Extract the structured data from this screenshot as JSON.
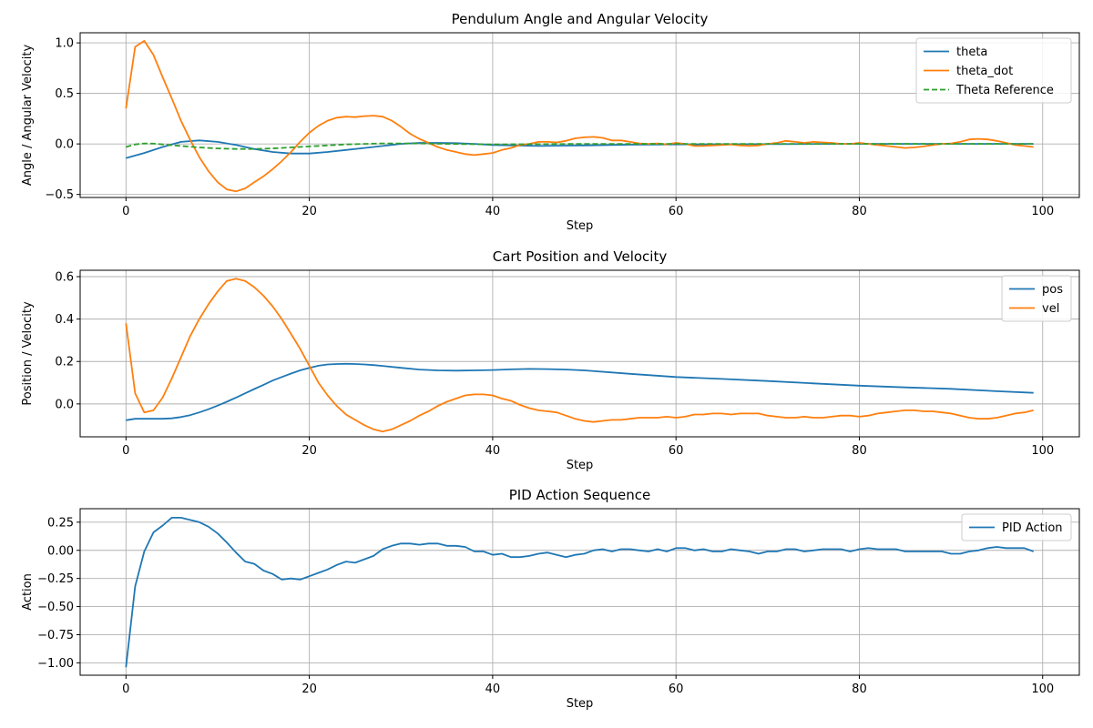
{
  "chart_data": [
    {
      "type": "line",
      "title": "Pendulum Angle and Angular Velocity",
      "xlabel": "Step",
      "ylabel": "Angle / Angular Velocity",
      "xlim": [
        -5,
        104
      ],
      "ylim": [
        -0.53,
        1.1
      ],
      "xticks": [
        0,
        20,
        40,
        60,
        80,
        100
      ],
      "yticks": [
        -0.5,
        0.0,
        0.5,
        1.0
      ],
      "yticklabels": [
        "−0.5",
        "0.0",
        "0.5",
        "1.0"
      ],
      "grid": true,
      "legend_position": "top-right",
      "series": [
        {
          "name": "theta",
          "color": "#1f77b4",
          "dash": "solid",
          "x": [
            0,
            2,
            4,
            6,
            8,
            10,
            12,
            14,
            16,
            18,
            20,
            22,
            24,
            26,
            28,
            30,
            32,
            34,
            36,
            38,
            40,
            45,
            50,
            55,
            60,
            65,
            70,
            80,
            90,
            99
          ],
          "y": [
            -0.14,
            -0.09,
            -0.03,
            0.02,
            0.035,
            0.02,
            -0.01,
            -0.05,
            -0.08,
            -0.095,
            -0.095,
            -0.08,
            -0.06,
            -0.04,
            -0.02,
            0.0,
            0.01,
            0.01,
            0.008,
            0.0,
            -0.01,
            -0.02,
            -0.015,
            -0.008,
            -0.005,
            -0.003,
            -0.002,
            0.0,
            0.0,
            0.0
          ]
        },
        {
          "name": "theta_dot",
          "color": "#ff7f0e",
          "dash": "solid",
          "x": [
            0,
            1,
            2,
            3,
            4,
            5,
            6,
            7,
            8,
            9,
            10,
            11,
            12,
            13,
            14,
            15,
            16,
            17,
            18,
            19,
            20,
            21,
            22,
            23,
            24,
            25,
            26,
            27,
            28,
            29,
            30,
            31,
            32,
            33,
            34,
            35,
            36,
            37,
            38,
            39,
            40,
            41,
            42,
            43,
            44,
            45,
            46,
            47,
            48,
            49,
            50,
            51,
            52,
            53,
            54,
            55,
            56,
            57,
            58,
            59,
            60,
            61,
            62,
            63,
            64,
            65,
            66,
            67,
            68,
            69,
            70,
            71,
            72,
            73,
            74,
            75,
            76,
            77,
            78,
            79,
            80,
            81,
            82,
            83,
            84,
            85,
            86,
            87,
            88,
            89,
            90,
            91,
            92,
            93,
            94,
            95,
            96,
            97,
            98,
            99
          ],
          "y": [
            0.35,
            0.96,
            1.02,
            0.88,
            0.66,
            0.45,
            0.23,
            0.04,
            -0.13,
            -0.27,
            -0.38,
            -0.45,
            -0.47,
            -0.44,
            -0.38,
            -0.32,
            -0.25,
            -0.17,
            -0.08,
            0.02,
            0.11,
            0.18,
            0.23,
            0.26,
            0.27,
            0.265,
            0.275,
            0.28,
            0.27,
            0.23,
            0.17,
            0.1,
            0.05,
            0.01,
            -0.03,
            -0.06,
            -0.08,
            -0.1,
            -0.11,
            -0.1,
            -0.09,
            -0.06,
            -0.04,
            -0.01,
            0.0,
            0.02,
            0.02,
            0.015,
            0.03,
            0.055,
            0.065,
            0.07,
            0.06,
            0.035,
            0.035,
            0.02,
            0.005,
            0.0,
            0.005,
            -0.005,
            0.01,
            0.0,
            -0.02,
            -0.02,
            -0.015,
            -0.01,
            -0.005,
            -0.015,
            -0.02,
            -0.015,
            0.0,
            0.01,
            0.03,
            0.02,
            0.01,
            0.02,
            0.015,
            0.01,
            0.0,
            0.0,
            0.01,
            0.0,
            -0.01,
            -0.02,
            -0.03,
            -0.04,
            -0.035,
            -0.025,
            -0.01,
            0.0,
            0.005,
            0.02,
            0.045,
            0.05,
            0.045,
            0.03,
            0.01,
            -0.01,
            -0.02,
            -0.03
          ]
        },
        {
          "name": "Theta Reference",
          "color": "#2ca02c",
          "dash": "dashed",
          "x": [
            0,
            1,
            2,
            3,
            4,
            6,
            8,
            10,
            12,
            14,
            16,
            18,
            20,
            22,
            24,
            26,
            28,
            30,
            32,
            35,
            40,
            50,
            60,
            70,
            80,
            90,
            99
          ],
          "y": [
            -0.03,
            -0.005,
            0.005,
            0.003,
            -0.005,
            -0.02,
            -0.035,
            -0.045,
            -0.05,
            -0.05,
            -0.045,
            -0.035,
            -0.025,
            -0.015,
            -0.005,
            0.0,
            0.005,
            0.005,
            0.005,
            0.0,
            -0.005,
            0.0,
            0.0,
            0.0,
            0.0,
            0.0,
            0.0
          ]
        }
      ]
    },
    {
      "type": "line",
      "title": "Cart Position and Velocity",
      "xlabel": "Step",
      "ylabel": "Position / Velocity",
      "xlim": [
        -5,
        104
      ],
      "ylim": [
        -0.155,
        0.63
      ],
      "xticks": [
        0,
        20,
        40,
        60,
        80,
        100
      ],
      "yticks": [
        0.0,
        0.2,
        0.4,
        0.6
      ],
      "yticklabels": [
        "0.0",
        "0.2",
        "0.4",
        "0.6"
      ],
      "grid": true,
      "legend_position": "top-right",
      "series": [
        {
          "name": "pos",
          "color": "#1f77b4",
          "dash": "solid",
          "x": [
            0,
            1,
            2,
            3,
            4,
            5,
            6,
            7,
            8,
            9,
            10,
            11,
            12,
            13,
            14,
            15,
            16,
            17,
            18,
            19,
            20,
            21,
            22,
            23,
            24,
            25,
            26,
            27,
            28,
            30,
            32,
            34,
            36,
            38,
            40,
            42,
            44,
            46,
            48,
            50,
            55,
            60,
            65,
            70,
            75,
            80,
            85,
            90,
            95,
            99
          ],
          "y": [
            -0.077,
            -0.07,
            -0.07,
            -0.07,
            -0.07,
            -0.068,
            -0.062,
            -0.053,
            -0.04,
            -0.025,
            -0.008,
            0.01,
            0.03,
            0.05,
            0.07,
            0.09,
            0.11,
            0.127,
            0.143,
            0.158,
            0.17,
            0.18,
            0.186,
            0.188,
            0.189,
            0.188,
            0.186,
            0.183,
            0.179,
            0.17,
            0.162,
            0.158,
            0.157,
            0.158,
            0.16,
            0.163,
            0.165,
            0.164,
            0.162,
            0.158,
            0.142,
            0.127,
            0.118,
            0.108,
            0.097,
            0.086,
            0.078,
            0.071,
            0.06,
            0.052
          ]
        },
        {
          "name": "vel",
          "color": "#ff7f0e",
          "dash": "solid",
          "x": [
            0,
            1,
            2,
            3,
            4,
            5,
            6,
            7,
            8,
            9,
            10,
            11,
            12,
            13,
            14,
            15,
            16,
            17,
            18,
            19,
            20,
            21,
            22,
            23,
            24,
            25,
            26,
            27,
            28,
            29,
            30,
            31,
            32,
            33,
            34,
            35,
            36,
            37,
            38,
            39,
            40,
            41,
            42,
            43,
            44,
            45,
            46,
            47,
            48,
            49,
            50,
            51,
            52,
            53,
            54,
            55,
            56,
            57,
            58,
            59,
            60,
            61,
            62,
            63,
            64,
            65,
            66,
            67,
            68,
            69,
            70,
            71,
            72,
            73,
            74,
            75,
            76,
            77,
            78,
            79,
            80,
            81,
            82,
            83,
            84,
            85,
            86,
            87,
            88,
            89,
            90,
            91,
            92,
            93,
            94,
            95,
            96,
            97,
            98,
            99
          ],
          "y": [
            0.38,
            0.05,
            -0.04,
            -0.03,
            0.03,
            0.12,
            0.22,
            0.32,
            0.4,
            0.47,
            0.53,
            0.58,
            0.59,
            0.58,
            0.55,
            0.51,
            0.46,
            0.4,
            0.33,
            0.26,
            0.18,
            0.1,
            0.04,
            -0.01,
            -0.05,
            -0.075,
            -0.1,
            -0.12,
            -0.13,
            -0.12,
            -0.1,
            -0.08,
            -0.055,
            -0.035,
            -0.01,
            0.01,
            0.025,
            0.04,
            0.045,
            0.045,
            0.04,
            0.025,
            0.015,
            -0.005,
            -0.02,
            -0.03,
            -0.035,
            -0.04,
            -0.055,
            -0.07,
            -0.08,
            -0.085,
            -0.08,
            -0.075,
            -0.075,
            -0.07,
            -0.065,
            -0.065,
            -0.065,
            -0.06,
            -0.065,
            -0.06,
            -0.05,
            -0.05,
            -0.045,
            -0.045,
            -0.05,
            -0.045,
            -0.045,
            -0.045,
            -0.055,
            -0.06,
            -0.065,
            -0.065,
            -0.06,
            -0.065,
            -0.065,
            -0.06,
            -0.055,
            -0.055,
            -0.06,
            -0.055,
            -0.045,
            -0.04,
            -0.035,
            -0.03,
            -0.03,
            -0.035,
            -0.035,
            -0.04,
            -0.045,
            -0.055,
            -0.065,
            -0.07,
            -0.07,
            -0.065,
            -0.055,
            -0.045,
            -0.04,
            -0.03
          ]
        }
      ]
    },
    {
      "type": "line",
      "title": "PID Action Sequence",
      "xlabel": "Step",
      "ylabel": "Action",
      "xlim": [
        -5,
        104
      ],
      "ylim": [
        -1.11,
        0.37
      ],
      "xticks": [
        0,
        20,
        40,
        60,
        80,
        100
      ],
      "yticks": [
        -1.0,
        -0.75,
        -0.5,
        -0.25,
        0.0,
        0.25
      ],
      "yticklabels": [
        "−1.00",
        "−0.75",
        "−0.50",
        "−0.25",
        "0.00",
        "0.25"
      ],
      "grid": true,
      "legend_position": "top-right",
      "series": [
        {
          "name": "PID Action",
          "color": "#1f77b4",
          "dash": "solid",
          "x": [
            0,
            1,
            2,
            3,
            4,
            5,
            6,
            7,
            8,
            9,
            10,
            11,
            12,
            13,
            14,
            15,
            16,
            17,
            18,
            19,
            20,
            21,
            22,
            23,
            24,
            25,
            26,
            27,
            28,
            29,
            30,
            31,
            32,
            33,
            34,
            35,
            36,
            37,
            38,
            39,
            40,
            41,
            42,
            43,
            44,
            45,
            46,
            47,
            48,
            49,
            50,
            51,
            52,
            53,
            54,
            55,
            56,
            57,
            58,
            59,
            60,
            61,
            62,
            63,
            64,
            65,
            66,
            67,
            68,
            69,
            70,
            71,
            72,
            73,
            74,
            75,
            76,
            77,
            78,
            79,
            80,
            81,
            82,
            83,
            84,
            85,
            86,
            87,
            88,
            89,
            90,
            91,
            92,
            93,
            94,
            95,
            96,
            97,
            98,
            99
          ],
          "y": [
            -1.04,
            -0.32,
            -0.01,
            0.16,
            0.22,
            0.29,
            0.29,
            0.27,
            0.25,
            0.21,
            0.15,
            0.07,
            -0.02,
            -0.1,
            -0.12,
            -0.18,
            -0.21,
            -0.26,
            -0.25,
            -0.26,
            -0.23,
            -0.2,
            -0.17,
            -0.13,
            -0.1,
            -0.11,
            -0.08,
            -0.05,
            0.01,
            0.04,
            0.06,
            0.06,
            0.05,
            0.06,
            0.06,
            0.04,
            0.04,
            0.03,
            -0.01,
            -0.01,
            -0.04,
            -0.03,
            -0.06,
            -0.06,
            -0.05,
            -0.03,
            -0.02,
            -0.04,
            -0.06,
            -0.04,
            -0.03,
            0.0,
            0.01,
            -0.01,
            0.01,
            0.01,
            0.0,
            -0.01,
            0.01,
            -0.01,
            0.02,
            0.02,
            0.0,
            0.01,
            -0.01,
            -0.01,
            0.01,
            0.0,
            -0.01,
            -0.03,
            -0.01,
            -0.01,
            0.01,
            0.01,
            -0.01,
            0.0,
            0.01,
            0.01,
            0.01,
            -0.01,
            0.01,
            0.02,
            0.01,
            0.01,
            0.01,
            -0.01,
            -0.01,
            -0.01,
            -0.01,
            -0.01,
            -0.03,
            -0.03,
            -0.01,
            0.0,
            0.02,
            0.03,
            0.02,
            0.02,
            0.02,
            -0.01
          ]
        }
      ]
    }
  ]
}
